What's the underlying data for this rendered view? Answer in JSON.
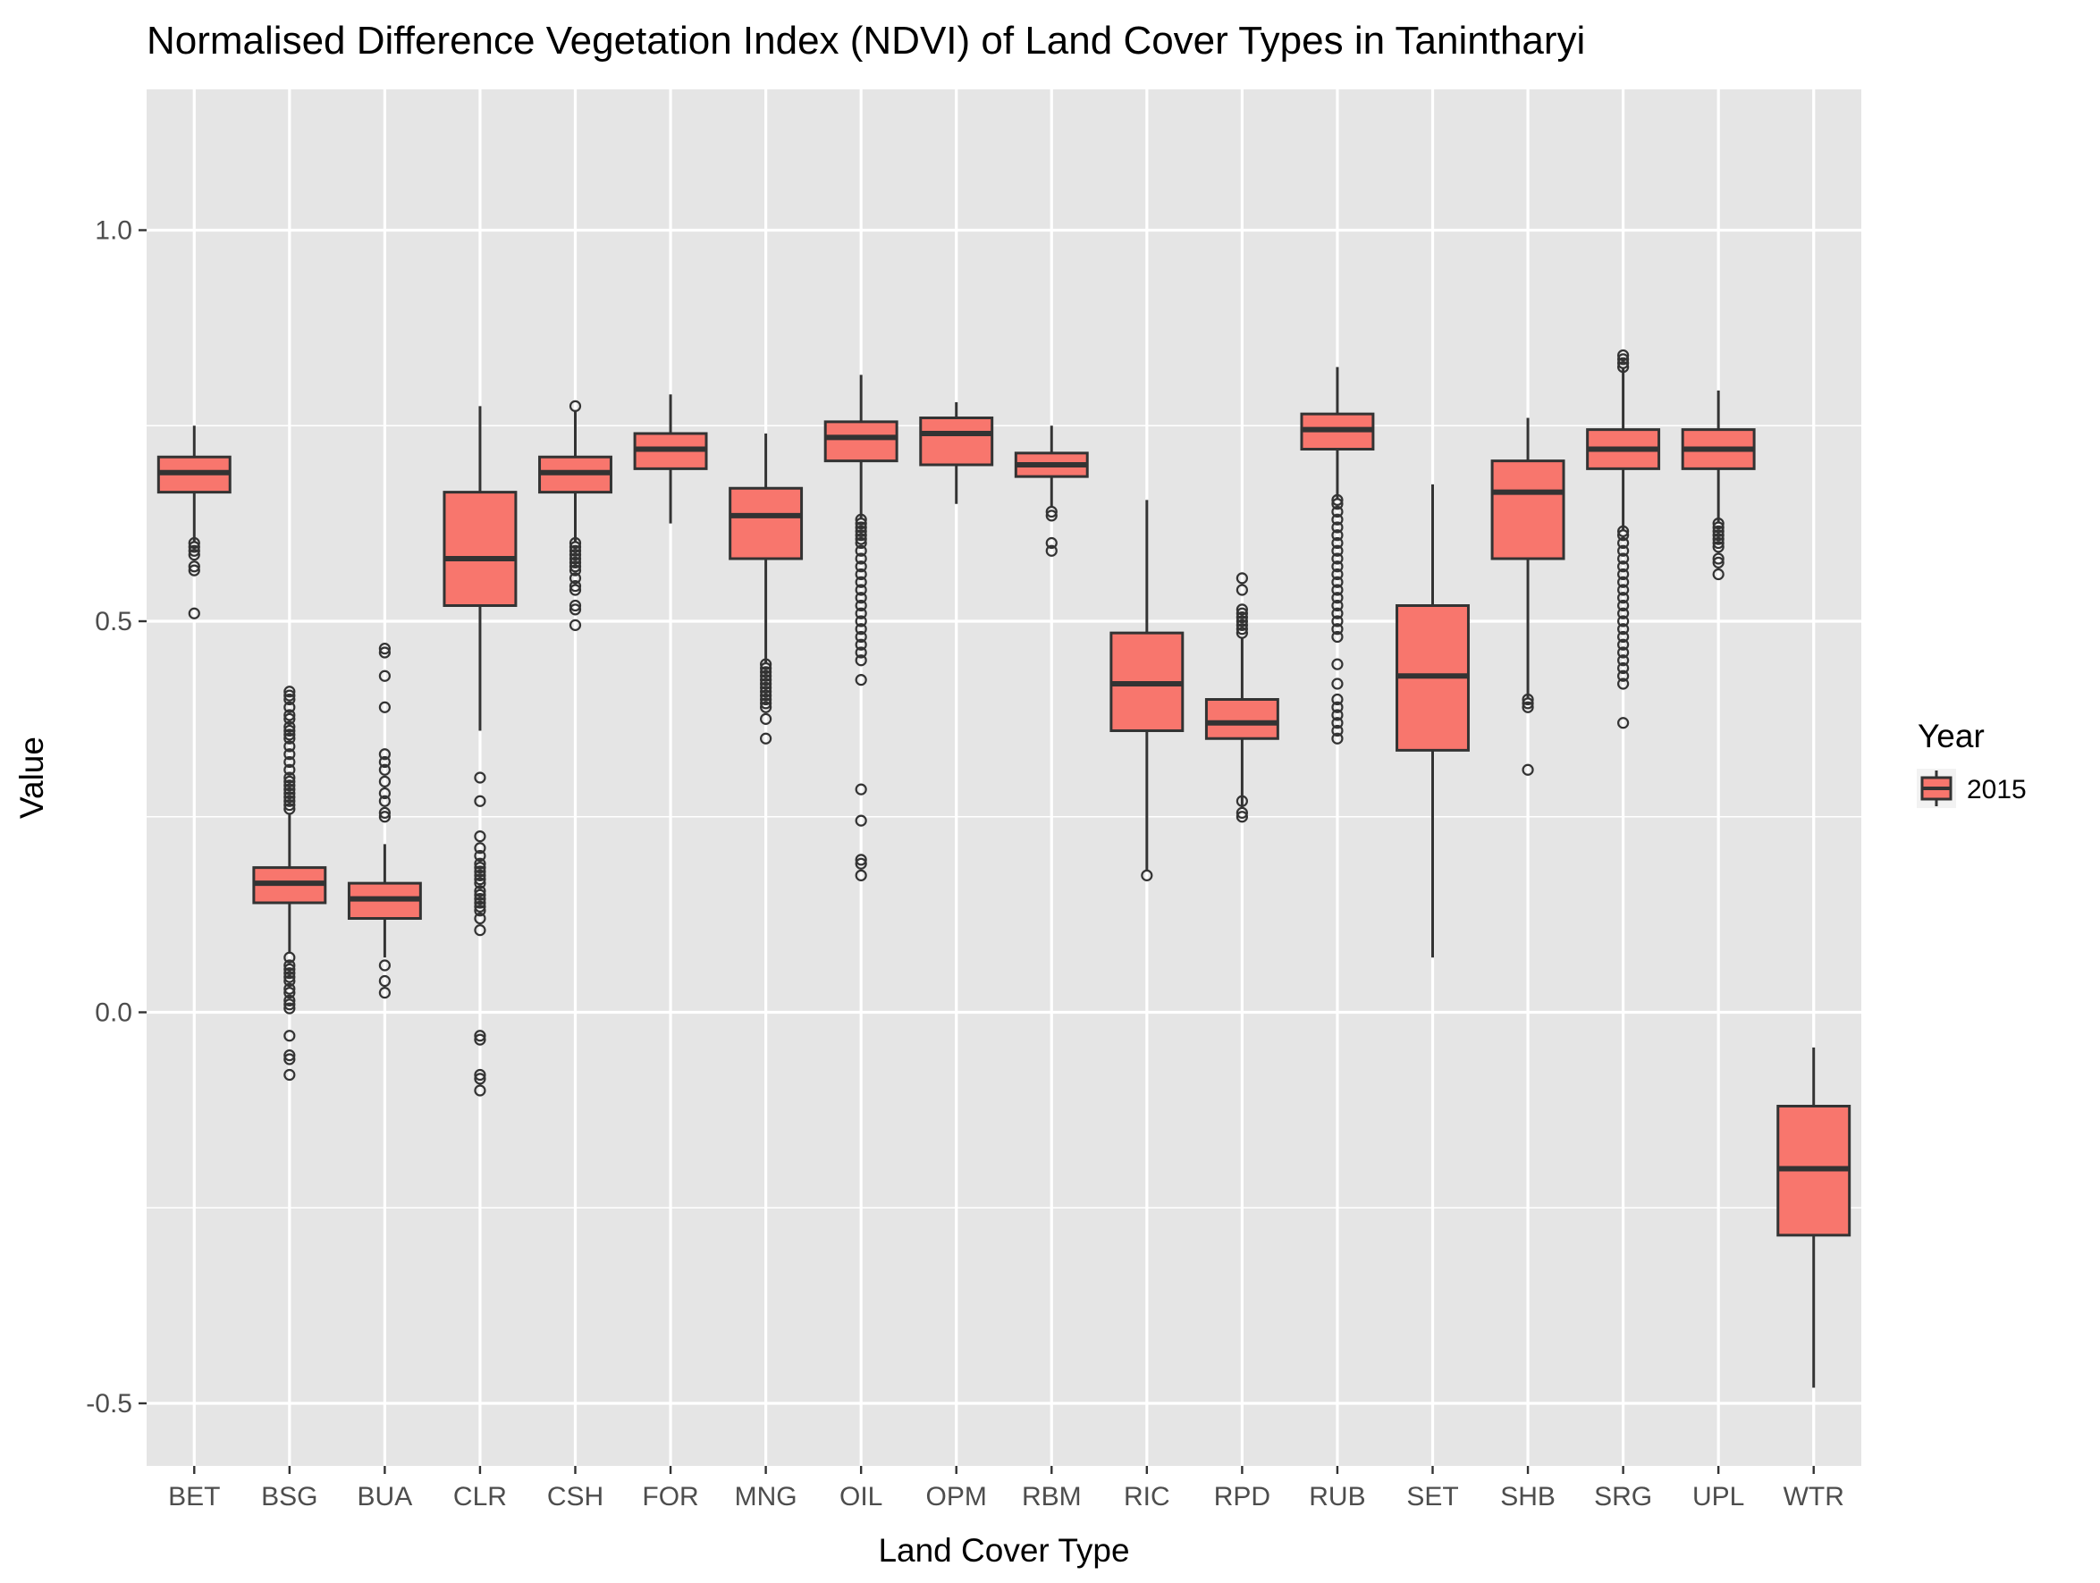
{
  "chart_data": {
    "type": "boxplot",
    "title": "Normalised Difference Vegetation Index (NDVI) of Land Cover Types in Tanintharyi",
    "xlabel": "Land Cover Type",
    "ylabel": "Value",
    "ylim": [
      -0.58,
      1.18
    ],
    "yticks": [
      -0.5,
      0.0,
      0.5,
      1.0
    ],
    "ytick_labels": [
      "-0.5",
      "0.0",
      "0.5",
      "1.0"
    ],
    "grid": true,
    "legend": {
      "title": "Year",
      "position": "right",
      "entries": [
        {
          "label": "2015",
          "color": "#F8766D"
        }
      ]
    },
    "colors": {
      "fill": "#F8766D",
      "panel": "#E5E5E5",
      "grid": "#FFFFFF",
      "line": "#333333"
    },
    "categories": [
      "BET",
      "BSG",
      "BUA",
      "CLR",
      "CSH",
      "FOR",
      "MNG",
      "OIL",
      "OPM",
      "RBM",
      "RIC",
      "RPD",
      "RUB",
      "SET",
      "SHB",
      "SRG",
      "UPL",
      "WTR"
    ],
    "series": [
      {
        "name": "2015",
        "boxes": [
          {
            "category": "BET",
            "whisker_low": 0.6,
            "q1": 0.665,
            "median": 0.69,
            "q3": 0.71,
            "whisker_high": 0.75,
            "outliers": [
              0.6,
              0.595,
              0.59,
              0.585,
              0.57,
              0.565,
              0.51
            ]
          },
          {
            "category": "BSG",
            "whisker_low": 0.075,
            "q1": 0.14,
            "median": 0.165,
            "q3": 0.185,
            "whisker_high": 0.255,
            "outliers": [
              0.41,
              0.405,
              0.4,
              0.39,
              0.38,
              0.375,
              0.365,
              0.36,
              0.355,
              0.35,
              0.34,
              0.33,
              0.32,
              0.31,
              0.3,
              0.295,
              0.29,
              0.285,
              0.28,
              0.275,
              0.27,
              0.265,
              0.26,
              0.07,
              0.06,
              0.055,
              0.05,
              0.045,
              0.04,
              0.03,
              0.025,
              0.015,
              0.01,
              0.005,
              -0.03,
              -0.055,
              -0.06,
              -0.08
            ]
          },
          {
            "category": "BUA",
            "whisker_low": 0.07,
            "q1": 0.12,
            "median": 0.145,
            "q3": 0.165,
            "whisker_high": 0.215,
            "outliers": [
              0.465,
              0.46,
              0.43,
              0.39,
              0.33,
              0.32,
              0.31,
              0.295,
              0.28,
              0.27,
              0.255,
              0.25,
              0.06,
              0.04,
              0.025
            ]
          },
          {
            "category": "CLR",
            "whisker_low": 0.36,
            "q1": 0.52,
            "median": 0.58,
            "q3": 0.665,
            "whisker_high": 0.775,
            "outliers": [
              0.3,
              0.27,
              0.225,
              0.21,
              0.2,
              0.19,
              0.185,
              0.18,
              0.175,
              0.17,
              0.165,
              0.155,
              0.15,
              0.145,
              0.14,
              0.135,
              0.13,
              0.12,
              0.105,
              -0.03,
              -0.035,
              -0.08,
              -0.085,
              -0.1
            ]
          },
          {
            "category": "CSH",
            "whisker_low": 0.6,
            "q1": 0.665,
            "median": 0.69,
            "q3": 0.71,
            "whisker_high": 0.77,
            "outliers": [
              0.775,
              0.6,
              0.595,
              0.59,
              0.585,
              0.58,
              0.575,
              0.57,
              0.565,
              0.555,
              0.545,
              0.54,
              0.52,
              0.515,
              0.495
            ]
          },
          {
            "category": "FOR",
            "whisker_low": 0.625,
            "q1": 0.695,
            "median": 0.72,
            "q3": 0.74,
            "whisker_high": 0.79,
            "outliers": []
          },
          {
            "category": "MNG",
            "whisker_low": 0.445,
            "q1": 0.58,
            "median": 0.635,
            "q3": 0.67,
            "whisker_high": 0.74,
            "outliers": [
              0.445,
              0.44,
              0.435,
              0.43,
              0.425,
              0.42,
              0.415,
              0.41,
              0.405,
              0.4,
              0.395,
              0.39,
              0.375,
              0.35
            ]
          },
          {
            "category": "OIL",
            "whisker_low": 0.63,
            "q1": 0.705,
            "median": 0.735,
            "q3": 0.755,
            "whisker_high": 0.815,
            "outliers": [
              0.63,
              0.625,
              0.62,
              0.615,
              0.61,
              0.605,
              0.6,
              0.59,
              0.58,
              0.57,
              0.56,
              0.55,
              0.54,
              0.53,
              0.52,
              0.51,
              0.5,
              0.49,
              0.48,
              0.47,
              0.46,
              0.45,
              0.425,
              0.285,
              0.245,
              0.195,
              0.19,
              0.175
            ]
          },
          {
            "category": "OPM",
            "whisker_low": 0.65,
            "q1": 0.7,
            "median": 0.74,
            "q3": 0.76,
            "whisker_high": 0.78,
            "outliers": []
          },
          {
            "category": "RBM",
            "whisker_low": 0.645,
            "q1": 0.685,
            "median": 0.7,
            "q3": 0.715,
            "whisker_high": 0.75,
            "outliers": [
              0.64,
              0.635,
              0.6,
              0.59
            ]
          },
          {
            "category": "RIC",
            "whisker_low": 0.18,
            "q1": 0.36,
            "median": 0.42,
            "q3": 0.485,
            "whisker_high": 0.655,
            "outliers": [
              0.175
            ]
          },
          {
            "category": "RPD",
            "whisker_low": 0.26,
            "q1": 0.35,
            "median": 0.37,
            "q3": 0.4,
            "whisker_high": 0.48,
            "outliers": [
              0.555,
              0.54,
              0.515,
              0.51,
              0.505,
              0.5,
              0.495,
              0.49,
              0.485,
              0.27,
              0.255,
              0.25
            ]
          },
          {
            "category": "RUB",
            "whisker_low": 0.655,
            "q1": 0.72,
            "median": 0.745,
            "q3": 0.765,
            "whisker_high": 0.825,
            "outliers": [
              0.655,
              0.65,
              0.64,
              0.63,
              0.62,
              0.61,
              0.6,
              0.59,
              0.58,
              0.57,
              0.56,
              0.55,
              0.54,
              0.53,
              0.52,
              0.51,
              0.5,
              0.49,
              0.48,
              0.445,
              0.42,
              0.4,
              0.39,
              0.38,
              0.37,
              0.36,
              0.35
            ]
          },
          {
            "category": "SET",
            "whisker_low": 0.07,
            "q1": 0.335,
            "median": 0.43,
            "q3": 0.52,
            "whisker_high": 0.675,
            "outliers": []
          },
          {
            "category": "SHB",
            "whisker_low": 0.4,
            "q1": 0.58,
            "median": 0.665,
            "q3": 0.705,
            "whisker_high": 0.76,
            "outliers": [
              0.4,
              0.395,
              0.39,
              0.31
            ]
          },
          {
            "category": "SRG",
            "whisker_low": 0.615,
            "q1": 0.695,
            "median": 0.72,
            "q3": 0.745,
            "whisker_high": 0.825,
            "outliers": [
              0.84,
              0.835,
              0.83,
              0.825,
              0.615,
              0.61,
              0.6,
              0.59,
              0.58,
              0.57,
              0.56,
              0.55,
              0.54,
              0.53,
              0.52,
              0.51,
              0.5,
              0.49,
              0.48,
              0.47,
              0.46,
              0.45,
              0.44,
              0.43,
              0.42,
              0.37
            ]
          },
          {
            "category": "UPL",
            "whisker_low": 0.625,
            "q1": 0.695,
            "median": 0.72,
            "q3": 0.745,
            "whisker_high": 0.795,
            "outliers": [
              0.625,
              0.62,
              0.615,
              0.61,
              0.605,
              0.6,
              0.595,
              0.58,
              0.575,
              0.56
            ]
          },
          {
            "category": "WTR",
            "whisker_low": -0.48,
            "q1": -0.285,
            "median": -0.2,
            "q3": -0.12,
            "whisker_high": -0.045,
            "outliers": []
          }
        ]
      }
    ]
  }
}
